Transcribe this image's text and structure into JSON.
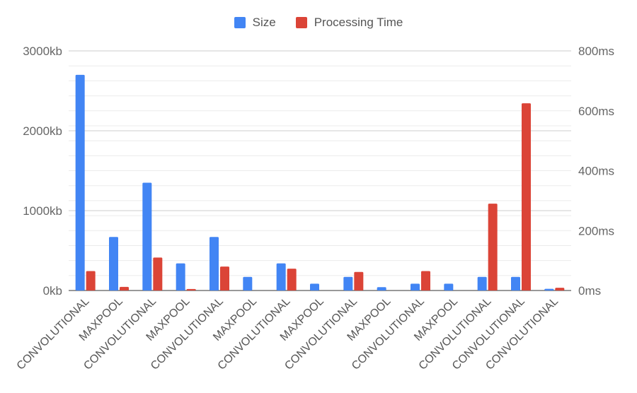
{
  "chart_data": {
    "type": "bar",
    "title": "",
    "xlabel": "",
    "ylabel": "",
    "categories": [
      "CONVOLUTIONAL",
      "MAXPOOL",
      "CONVOLUTIONAL",
      "MAXPOOL",
      "CONVOLUTIONAL",
      "MAXPOOL",
      "CONVOLUTIONAL",
      "MAXPOOL",
      "CONVOLUTIONAL",
      "MAXPOOL",
      "CONVOLUTIONAL",
      "MAXPOOL",
      "CONVOLUTIONAL",
      "CONVOLUTIONAL",
      "CONVOLUTIONAL"
    ],
    "series": [
      {
        "name": "Size",
        "axis": "left",
        "color": "#4285F4",
        "values": [
          2700,
          670,
          1350,
          340,
          670,
          170,
          340,
          85,
          170,
          42,
          85,
          85,
          170,
          170,
          21
        ]
      },
      {
        "name": "Processing Time",
        "axis": "right",
        "color": "#DB4437",
        "values": [
          65,
          12,
          110,
          5,
          80,
          0,
          73,
          0,
          62,
          0,
          65,
          0,
          290,
          625,
          9
        ]
      }
    ],
    "left_axis": {
      "ylim": [
        0,
        3000
      ],
      "ticks": [
        0,
        1000,
        2000,
        3000
      ],
      "tick_labels": [
        "0kb",
        "1000kb",
        "2000kb",
        "3000kb"
      ]
    },
    "right_axis": {
      "ylim": [
        0,
        800
      ],
      "ticks": [
        0,
        200,
        400,
        600,
        800
      ],
      "tick_labels": [
        "0ms",
        "200ms",
        "400ms",
        "600ms",
        "800ms"
      ]
    },
    "legend": {
      "position": "top",
      "items": [
        "Size",
        "Processing Time"
      ]
    },
    "grid": true
  }
}
